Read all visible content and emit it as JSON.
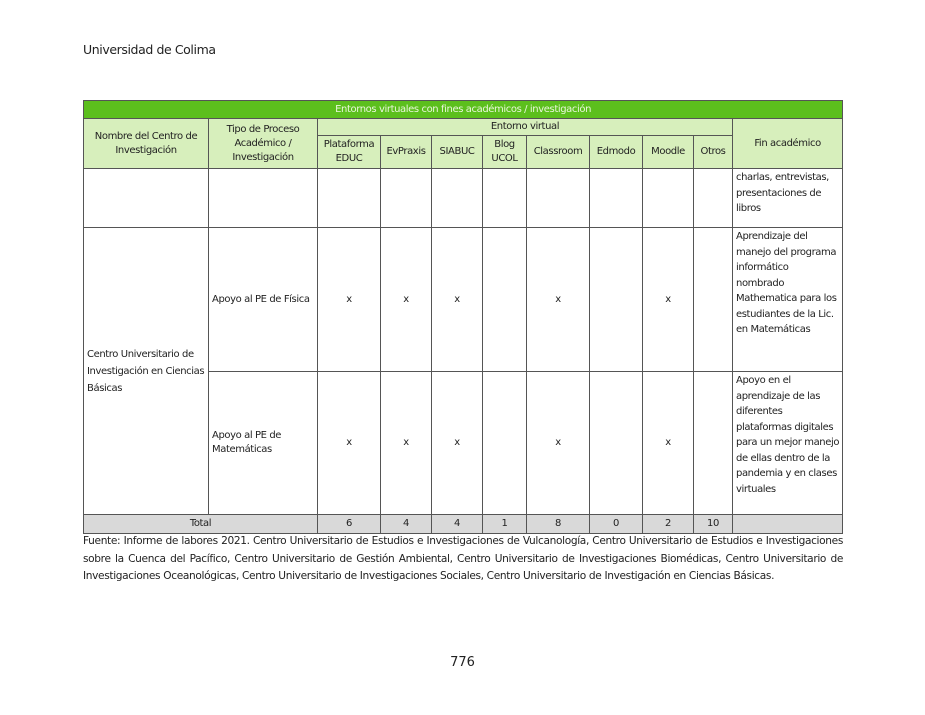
{
  "running_head": "Universidad de Colima",
  "table": {
    "title": "Entornos virtuales con fines académicos / investigación",
    "headers": {
      "center": "Nombre del Centro de Investigación",
      "process": "Tipo de Proceso Académico / Investigación",
      "group": "Entorno virtual",
      "platforms": [
        "Plataforma EDUC",
        "EvPraxis",
        "SIABUC",
        "Blog UCOL",
        "Classroom",
        "Edmodo",
        "Moodle",
        "Otros"
      ],
      "goal": "Fin académico"
    },
    "continued_row": {
      "goal": "charlas, entrevistas, presentaciones de libros"
    },
    "center_name": "Centro Universitario de Investigación en Ciencias Básicas",
    "rows": [
      {
        "process": "Apoyo al PE de Física",
        "marks": [
          "x",
          "x",
          "x",
          "",
          "x",
          "",
          "x",
          ""
        ],
        "goal": "Aprendizaje del manejo del programa informático nombrado Mathematica para los estudiantes de la Lic. en Matemáticas"
      },
      {
        "process": "Apoyo al PE de Matemáticas",
        "marks": [
          "x",
          "x",
          "x",
          "",
          "x",
          "",
          "x",
          ""
        ],
        "goal": "Apoyo en el aprendizaje de las diferentes plataformas digitales para un mejor manejo de ellas dentro de la pandemia y en clases virtuales"
      }
    ],
    "total": {
      "label": "Total",
      "values": [
        "6",
        "4",
        "4",
        "1",
        "8",
        "0",
        "2",
        "10"
      ]
    }
  },
  "source": "Fuente: Informe de labores 2021. Centro Universitario de Estudios e Investigaciones de Vulcanología, Centro Universitario de Estudios e Investigaciones sobre la Cuenca del Pacífico, Centro Universitario de Gestión Ambiental, Centro Universitario de Investigaciones Biomédicas, Centro Universitario de Investigaciones Oceanológicas, Centro Universitario de Investigaciones Sociales, Centro Universitario de Investigación en Ciencias Básicas.",
  "page_number": "776",
  "colors": {
    "title_bg": "#5cbf1d",
    "header_bg": "#d7efbc",
    "total_bg": "#d9d9d9"
  }
}
